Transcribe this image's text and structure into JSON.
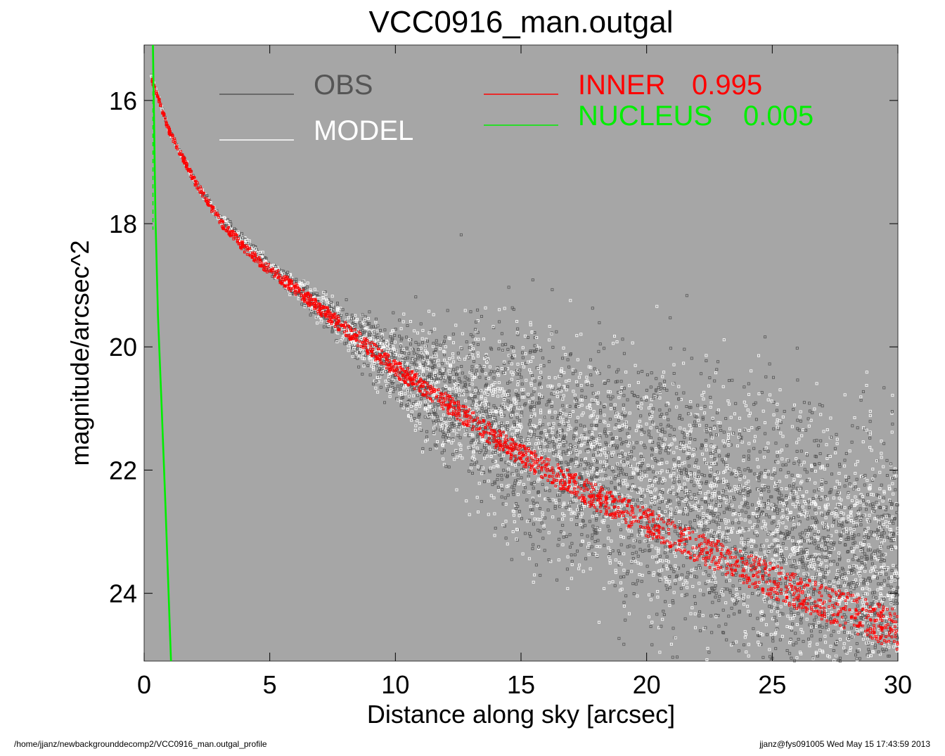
{
  "chart_data": {
    "type": "scatter",
    "title": "VCC0916_man.outgal",
    "xlabel": "Distance along sky [arcsec]",
    "ylabel": "magnitude/arcsec^2",
    "xlim": [
      0,
      30
    ],
    "ylim": [
      25.1,
      15.1
    ],
    "y_inverted": true,
    "x_ticks": [
      0,
      5,
      10,
      15,
      20,
      25,
      30
    ],
    "y_ticks": [
      16,
      18,
      20,
      22,
      24
    ],
    "plot_background": "#a6a6a6",
    "grid": false,
    "legend_position": "top",
    "legend": [
      {
        "label": "OBS",
        "value": "",
        "color": "#555555"
      },
      {
        "label": "MODEL",
        "value": "",
        "color": "#ffffff"
      },
      {
        "label": "INNER",
        "value": "0.995",
        "color": "#ff0000"
      },
      {
        "label": "NUCLEUS",
        "value": "0.005",
        "color": "#00ee00"
      }
    ],
    "series": [
      {
        "name": "OBS",
        "color": "#555555",
        "marker": "open-square",
        "scatter_start": [
          [
            0,
            0.0
          ],
          [
            5,
            0.05
          ],
          [
            8,
            0.15
          ],
          [
            10,
            0.3
          ],
          [
            12,
            0.5
          ],
          [
            15,
            0.8
          ],
          [
            20,
            1.0
          ],
          [
            30,
            1.1
          ]
        ],
        "points": [
          [
            0.3,
            15.6
          ],
          [
            1,
            16.5
          ],
          [
            2,
            17.3
          ],
          [
            3,
            17.9
          ],
          [
            5,
            18.7
          ],
          [
            8,
            19.7
          ],
          [
            10,
            20.3
          ],
          [
            15,
            21.4
          ],
          [
            20,
            22.3
          ],
          [
            25,
            23.1
          ],
          [
            30,
            23.8
          ]
        ]
      },
      {
        "name": "MODEL",
        "color": "#ffffff",
        "marker": "open-square",
        "points": [
          [
            0.3,
            15.6
          ],
          [
            1,
            16.5
          ],
          [
            2,
            17.3
          ],
          [
            3,
            17.9
          ],
          [
            5,
            18.7
          ],
          [
            8,
            19.7
          ],
          [
            10,
            20.3
          ],
          [
            15,
            21.4
          ],
          [
            20,
            22.3
          ],
          [
            25,
            23.1
          ],
          [
            30,
            23.8
          ]
        ]
      },
      {
        "name": "INNER",
        "color": "#ff0000",
        "points": [
          [
            0.3,
            15.65
          ],
          [
            1,
            16.5
          ],
          [
            2,
            17.3
          ],
          [
            3,
            17.95
          ],
          [
            4,
            18.4
          ],
          [
            5,
            18.75
          ],
          [
            6,
            19.05
          ],
          [
            8,
            19.7
          ],
          [
            10,
            20.35
          ],
          [
            12,
            20.9
          ],
          [
            15,
            21.75
          ],
          [
            18,
            22.45
          ],
          [
            20,
            22.85
          ],
          [
            22,
            23.25
          ],
          [
            25,
            23.8
          ],
          [
            27,
            24.15
          ],
          [
            30,
            24.6
          ]
        ]
      },
      {
        "name": "NUCLEUS",
        "color": "#00ee00",
        "points": [
          [
            0.35,
            15.1
          ],
          [
            0.45,
            17.9
          ],
          [
            0.55,
            19.5
          ],
          [
            0.7,
            21.0
          ],
          [
            0.85,
            22.6
          ],
          [
            1.0,
            24.3
          ],
          [
            1.07,
            25.1
          ]
        ]
      }
    ]
  },
  "footer": {
    "left": "/home/jjanz/newbackgrounddecomp2/VCC0916_man.outgal_profile",
    "right": "jjanz@fys091005  Wed May 15 17:43:59 2013"
  }
}
